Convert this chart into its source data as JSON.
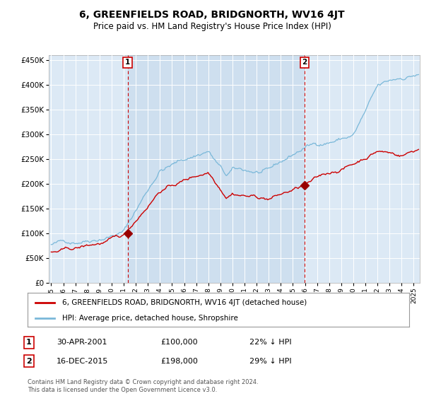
{
  "title": "6, GREENFIELDS ROAD, BRIDGNORTH, WV16 4JT",
  "subtitle": "Price paid vs. HM Land Registry's House Price Index (HPI)",
  "plot_bg_color": "#dce9f5",
  "shade_color": "#c8dcee",
  "hpi_color": "#7ab8d9",
  "price_color": "#cc0000",
  "marker_color": "#990000",
  "sale1_year": 2001.33,
  "sale1_price": 100000,
  "sale2_year": 2015.96,
  "sale2_price": 198000,
  "ylim": [
    0,
    460000
  ],
  "xlim_start": 1994.8,
  "xlim_end": 2025.5,
  "yticks": [
    0,
    50000,
    100000,
    150000,
    200000,
    250000,
    300000,
    350000,
    400000,
    450000
  ],
  "xticks": [
    1995,
    1996,
    1997,
    1998,
    1999,
    2000,
    2001,
    2002,
    2003,
    2004,
    2005,
    2006,
    2007,
    2008,
    2009,
    2010,
    2011,
    2012,
    2013,
    2014,
    2015,
    2016,
    2017,
    2018,
    2019,
    2020,
    2021,
    2022,
    2023,
    2024,
    2025
  ],
  "legend1_label": "6, GREENFIELDS ROAD, BRIDGNORTH, WV16 4JT (detached house)",
  "legend2_label": "HPI: Average price, detached house, Shropshire",
  "note1_date": "30-APR-2001",
  "note1_price": "£100,000",
  "note1_hpi": "22% ↓ HPI",
  "note2_date": "16-DEC-2015",
  "note2_price": "£198,000",
  "note2_hpi": "29% ↓ HPI",
  "footer": "Contains HM Land Registry data © Crown copyright and database right 2024.\nThis data is licensed under the Open Government Licence v3.0."
}
